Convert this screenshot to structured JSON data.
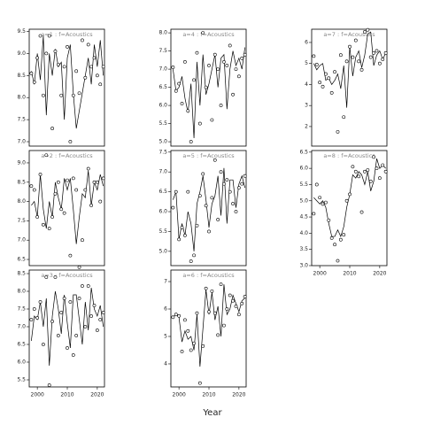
{
  "xlabel": "Year",
  "chart_data": [
    {
      "type": "line",
      "title": "a=1 : f=Acoustics",
      "x": [
        1998,
        1999,
        2000,
        2001,
        2002,
        2003,
        2004,
        2005,
        2006,
        2007,
        2008,
        2009,
        2010,
        2011,
        2012,
        2013,
        2014,
        2015,
        2016,
        2017,
        2018,
        2019,
        2020,
        2021,
        2022
      ],
      "values": [
        8.6,
        8.3,
        9.0,
        8.4,
        9.4,
        7.6,
        9.0,
        8.5,
        9.1,
        8.7,
        8.8,
        7.5,
        8.9,
        9.2,
        8.1,
        7.3,
        7.7,
        8.1,
        8.5,
        8.9,
        8.3,
        9.2,
        8.7,
        9.3,
        8.5
      ],
      "points": [
        8.55,
        8.35,
        8.9,
        9.4,
        8.05,
        9.0,
        9.4,
        7.3,
        9.05,
        8.75,
        8.05,
        8.7,
        9.15,
        7.0,
        8.05,
        8.6,
        8.1,
        9.3,
        8.45,
        9.2,
        8.7,
        8.9,
        8.5,
        8.3,
        8.7
      ],
      "xlim": [
        1997.3,
        2022.4
      ],
      "ylim": [
        6.9,
        9.55
      ],
      "yticks": [
        {
          "value": 7,
          "label": "7.0"
        },
        7.5,
        {
          "value": 8,
          "label": "8.0"
        },
        8.5,
        {
          "value": 9,
          "label": "9.0"
        },
        9.5
      ]
    },
    {
      "type": "line",
      "title": "a=2 : f=Acoustics",
      "x": [
        1998,
        1999,
        2000,
        2001,
        2002,
        2003,
        2004,
        2005,
        2006,
        2007,
        2008,
        2009,
        2010,
        2011,
        2012,
        2013,
        2014,
        2015,
        2016,
        2017,
        2018,
        2019,
        2020,
        2021,
        2022
      ],
      "values": [
        7.9,
        8.0,
        7.6,
        8.7,
        7.8,
        7.3,
        8.0,
        7.6,
        8.5,
        8.1,
        7.8,
        8.6,
        8.3,
        8.6,
        7.8,
        6.9,
        7.6,
        8.2,
        8.1,
        8.8,
        7.9,
        8.5,
        8.3,
        8.7,
        8.4
      ],
      "points": [
        8.4,
        8.3,
        7.6,
        8.7,
        7.4,
        9.2,
        7.3,
        7.6,
        8.2,
        8.5,
        7.8,
        7.7,
        8.55,
        6.6,
        8.6,
        8.3,
        6.3,
        7.0,
        8.3,
        8.85,
        7.9,
        8.5,
        8.5,
        8.0,
        8.6
      ],
      "xlim": [
        1997.3,
        2022.4
      ],
      "ylim": [
        6.34,
        9.32
      ],
      "yticks": [
        6.5,
        {
          "value": 7,
          "label": "7.0"
        },
        7.5,
        {
          "value": 8,
          "label": "8.0"
        },
        8.5,
        {
          "value": 9,
          "label": "9.0"
        }
      ]
    },
    {
      "type": "line",
      "title": "a=3 : f=Acoustics",
      "x": [
        1998,
        1999,
        2000,
        2001,
        2002,
        2003,
        2004,
        2005,
        2006,
        2007,
        2008,
        2009,
        2010,
        2011,
        2012,
        2013,
        2014,
        2015,
        2016,
        2017,
        2018,
        2019,
        2020,
        2021,
        2022
      ],
      "values": [
        6.6,
        7.3,
        7.2,
        7.7,
        7.0,
        7.8,
        5.9,
        7.3,
        8.0,
        7.5,
        6.8,
        7.9,
        7.1,
        6.4,
        7.9,
        7.9,
        7.2,
        6.5,
        7.7,
        6.9,
        8.1,
        7.5,
        7.3,
        7.6,
        7.0
      ],
      "points": [
        7.2,
        7.5,
        7.25,
        7.7,
        6.5,
        8.4,
        5.35,
        7.15,
        8.4,
        6.75,
        7.4,
        7.8,
        6.4,
        7.7,
        6.2,
        6.75,
        7.8,
        8.15,
        7.0,
        8.15,
        7.3,
        7.6,
        6.9,
        7.2,
        7.4
      ],
      "xlim": [
        1997.3,
        2022.4
      ],
      "ylim": [
        5.3,
        8.6
      ],
      "yticks": [
        5.5,
        {
          "value": 6,
          "label": "6.0"
        },
        6.5,
        {
          "value": 7,
          "label": "7.0"
        },
        7.5,
        {
          "value": 8,
          "label": "8.0"
        },
        8.5
      ],
      "xticks": [
        2000,
        2010,
        2020
      ]
    },
    {
      "type": "line",
      "title": "a=4 : f=Acoustics",
      "x": [
        1998,
        1999,
        2000,
        2001,
        2002,
        2003,
        2004,
        2005,
        2006,
        2007,
        2008,
        2009,
        2010,
        2011,
        2012,
        2013,
        2014,
        2015,
        2016,
        2017,
        2018,
        2019,
        2020,
        2021,
        2022
      ],
      "values": [
        7.0,
        6.4,
        6.5,
        6.8,
        6.2,
        5.8,
        6.6,
        5.1,
        7.2,
        6.0,
        7.4,
        6.3,
        6.6,
        7.0,
        7.4,
        6.5,
        7.3,
        7.4,
        5.9,
        7.0,
        7.5,
        7.1,
        7.3,
        7.0,
        7.6
      ],
      "points": [
        7.05,
        6.4,
        6.6,
        6.05,
        7.2,
        5.85,
        5.0,
        6.7,
        7.45,
        5.5,
        8.0,
        6.5,
        7.1,
        5.6,
        7.4,
        7.0,
        6.0,
        7.2,
        7.1,
        7.65,
        6.3,
        7.0,
        6.8,
        7.3,
        7.4
      ],
      "xlim": [
        1997.3,
        2022.4
      ],
      "ylim": [
        4.88,
        8.1
      ],
      "yticks": [
        {
          "value": 5,
          "label": "5.0"
        },
        5.5,
        {
          "value": 6,
          "label": "6.0"
        },
        6.5,
        {
          "value": 7,
          "label": "7.0"
        },
        7.5,
        {
          "value": 8,
          "label": "8.0"
        }
      ]
    },
    {
      "type": "line",
      "title": "a=5 : f=Acoustics",
      "x": [
        1998,
        1999,
        2000,
        2001,
        2002,
        2003,
        2004,
        2005,
        2006,
        2007,
        2008,
        2009,
        2010,
        2011,
        2012,
        2013,
        2014,
        2015,
        2016,
        2017,
        2018,
        2019,
        2020,
        2021,
        2022
      ],
      "values": [
        6.3,
        6.5,
        5.3,
        5.7,
        5.4,
        6.0,
        5.7,
        5.0,
        6.2,
        6.5,
        6.9,
        6.3,
        5.6,
        6.2,
        6.4,
        6.9,
        5.9,
        7.1,
        5.7,
        6.8,
        6.8,
        6.1,
        6.7,
        6.9,
        6.6
      ],
      "points": [
        6.1,
        6.5,
        5.3,
        5.6,
        5.4,
        6.5,
        4.75,
        4.9,
        5.65,
        6.4,
        6.95,
        6.15,
        5.5,
        6.35,
        7.3,
        5.8,
        7.0,
        6.7,
        6.8,
        6.5,
        6.2,
        6.0,
        6.6,
        6.7,
        6.9
      ],
      "xlim": [
        1997.3,
        2022.4
      ],
      "ylim": [
        4.64,
        7.54
      ],
      "yticks": [
        {
          "value": 5,
          "label": "5.0"
        },
        5.5,
        {
          "value": 6,
          "label": "6.0"
        },
        6.5,
        {
          "value": 7,
          "label": "7.0"
        },
        7.5
      ]
    },
    {
      "type": "line",
      "title": "a=6 : f=Acoustics",
      "x": [
        1998,
        1999,
        2000,
        2001,
        2002,
        2003,
        2004,
        2005,
        2006,
        2007,
        2008,
        2009,
        2010,
        2011,
        2012,
        2013,
        2014,
        2015,
        2016,
        2017,
        2018,
        2019,
        2020,
        2021,
        2022
      ],
      "values": [
        5.7,
        5.8,
        5.7,
        4.8,
        5.2,
        4.9,
        5.0,
        4.5,
        5.8,
        3.9,
        5.3,
        6.7,
        5.8,
        6.6,
        5.6,
        6.1,
        5.0,
        6.9,
        5.8,
        6.0,
        6.5,
        6.2,
        5.9,
        6.3,
        6.4
      ],
      "points": [
        5.7,
        5.8,
        5.75,
        4.45,
        5.6,
        5.2,
        4.5,
        4.75,
        5.85,
        3.3,
        4.65,
        6.75,
        5.9,
        6.65,
        5.85,
        5.05,
        6.9,
        5.4,
        6.0,
        6.5,
        6.3,
        6.1,
        5.8,
        6.2,
        6.45
      ],
      "xlim": [
        1997.3,
        2022.4
      ],
      "ylim": [
        3.16,
        7.42
      ],
      "yticks": [
        4,
        5,
        6,
        7
      ],
      "xticks": [
        2000,
        2010,
        2020
      ]
    },
    {
      "type": "line",
      "title": "a=7 : f=Acoustics",
      "x": [
        1998,
        1999,
        2000,
        2001,
        2002,
        2003,
        2004,
        2005,
        2006,
        2007,
        2008,
        2009,
        2010,
        2011,
        2012,
        2013,
        2014,
        2015,
        2016,
        2017,
        2018,
        2019,
        2020,
        2021,
        2022
      ],
      "values": [
        5.0,
        4.7,
        4.9,
        5.0,
        4.2,
        4.3,
        4.0,
        4.2,
        4.5,
        3.8,
        4.9,
        2.9,
        5.8,
        4.4,
        5.3,
        5.6,
        4.8,
        5.4,
        6.4,
        6.5,
        4.9,
        5.4,
        5.6,
        5.2,
        5.5
      ],
      "points": [
        5.35,
        4.95,
        4.1,
        3.9,
        4.5,
        4.3,
        3.6,
        4.6,
        1.75,
        5.4,
        2.45,
        5.1,
        5.8,
        5.3,
        6.1,
        5.1,
        4.7,
        6.5,
        6.6,
        5.3,
        5.5,
        5.6,
        5.0,
        5.2,
        5.5
      ],
      "xlim": [
        1997.3,
        2022.4
      ],
      "ylim": [
        1.07,
        6.63
      ],
      "yticks": [
        2,
        3,
        4,
        5,
        6
      ]
    },
    {
      "type": "line",
      "title": "a=8 : f=Acoustics",
      "x": [
        1998,
        1999,
        2000,
        2001,
        2002,
        2003,
        2004,
        2005,
        2006,
        2007,
        2008,
        2009,
        2010,
        2011,
        2012,
        2013,
        2014,
        2015,
        2016,
        2017,
        2018,
        2019,
        2020,
        2021,
        2022
      ],
      "values": [
        5.1,
        5.0,
        4.9,
        5.0,
        4.8,
        4.3,
        3.9,
        3.9,
        4.1,
        3.9,
        4.2,
        4.8,
        5.2,
        5.8,
        5.7,
        5.9,
        5.8,
        5.5,
        5.9,
        5.3,
        5.6,
        6.3,
        6.0,
        6.1,
        6.0
      ],
      "points": [
        4.6,
        5.5,
        5.1,
        4.9,
        4.95,
        4.4,
        3.85,
        3.65,
        3.15,
        3.8,
        3.95,
        5.0,
        5.2,
        6.05,
        5.9,
        5.75,
        4.65,
        5.9,
        5.95,
        5.6,
        6.35,
        6.0,
        5.7,
        6.1,
        5.9
      ],
      "xlim": [
        1997.3,
        2022.4
      ],
      "ylim": [
        3.0,
        6.55
      ],
      "yticks": [
        {
          "value": 3,
          "label": "3.0"
        },
        3.5,
        {
          "value": 4,
          "label": "4.0"
        },
        4.5,
        {
          "value": 5,
          "label": "5.0"
        },
        5.5,
        {
          "value": 6,
          "label": "6.0"
        },
        6.5
      ],
      "xticks": [
        2000,
        2010,
        2020
      ]
    }
  ]
}
